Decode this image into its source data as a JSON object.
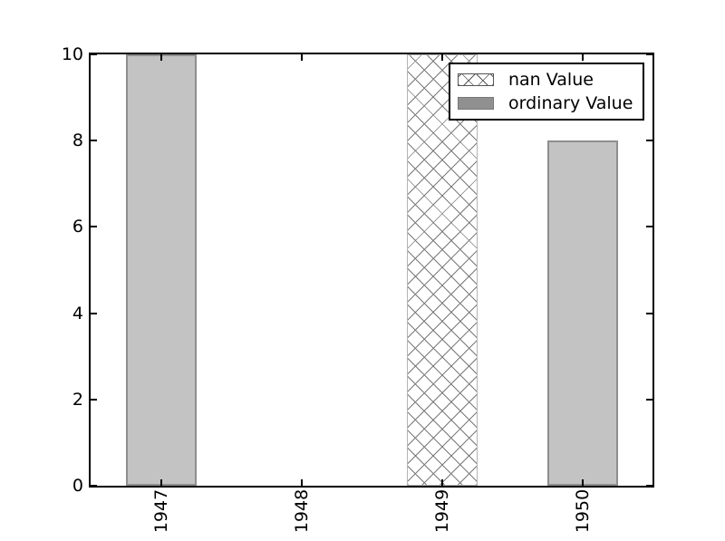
{
  "chart_data": {
    "type": "bar",
    "title": "",
    "xlabel": "",
    "ylabel": "",
    "categories": [
      "1947",
      "1948",
      "1949",
      "1950"
    ],
    "series": [
      {
        "name": "nan Value",
        "style": "hatched",
        "hatch": "x",
        "values": [
          null,
          null,
          10,
          null
        ]
      },
      {
        "name": "ordinary Value",
        "style": "solid",
        "hatch": "",
        "values": [
          10,
          null,
          null,
          8
        ]
      }
    ],
    "ylim": [
      0,
      10
    ],
    "yticks": [
      0,
      2,
      4,
      6,
      8,
      10
    ],
    "xtick_rotation": 90,
    "grid": false,
    "legend": {
      "position": "upper right",
      "entries": [
        "nan Value",
        "ordinary Value"
      ]
    }
  },
  "colors": {
    "background": "#ffffff",
    "axis_line": "#000000",
    "tick_text": "#000000",
    "solid_bar_fill": "#c3c3c3",
    "solid_bar_edge": "#8e8e8e",
    "hatched_bar_fill": "#ffffff",
    "hatched_bar_edge": "#b4b4b4",
    "hatch_line": "#7a7a7a",
    "legend_solid_swatch": "#909090",
    "legend_border": "#000000"
  }
}
